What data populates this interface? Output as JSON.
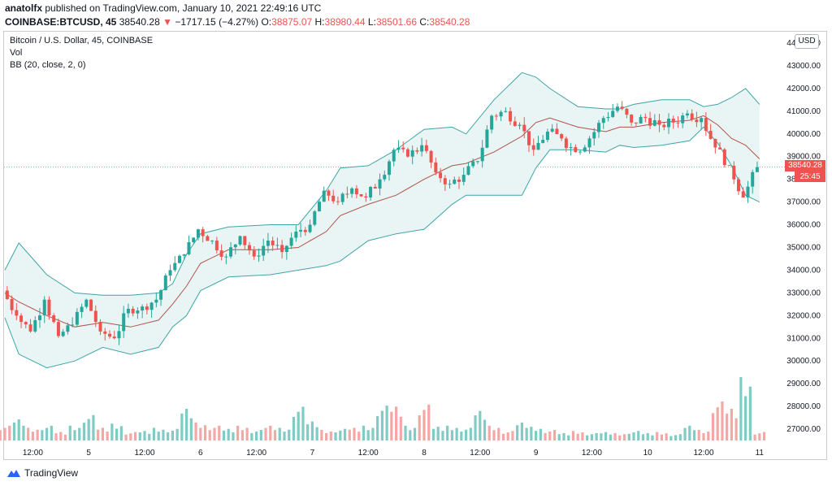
{
  "header": {
    "publisher_user": "anatolfx",
    "publisher_text": " published on TradingView.com, January 10, 2021 22:49:16 UTC",
    "symbol": "COINBASE:BTCUSD, 45",
    "last": "38540.28",
    "change_arrow": "▼",
    "change": "−1717.15 (−4.27%)",
    "o_label": "O:",
    "o_value": "38875.07",
    "h_label": "H:",
    "h_value": "38980.44",
    "l_label": "L:",
    "l_value": "38501.66",
    "c_label": "C:",
    "c_value": "38540.28"
  },
  "legend": {
    "title": "Bitcoin / U.S. Dollar, 45, COINBASE",
    "vol": "Vol",
    "bb": "BB (20, close, 2, 0)"
  },
  "currency_badge": "USD",
  "price_tag": "38540.28",
  "countdown_tag": "25:45",
  "footer": {
    "brand": "TradingView"
  },
  "colors": {
    "up": "#26a69a",
    "down": "#ef5350",
    "up_vol": "#80cbc4",
    "down_vol": "#f5a7a6",
    "band": "#3fa4a8",
    "band_fill": "#e8f5f4",
    "basis": "#b2524b"
  },
  "chart_data": {
    "type": "candlestick",
    "y_axis": {
      "ylim": [
        26500,
        44500
      ],
      "ticks": [
        27000,
        28000,
        29000,
        30000,
        31000,
        32000,
        33000,
        34000,
        35000,
        36000,
        37000,
        38000,
        39000,
        40000,
        41000,
        42000,
        43000,
        44000
      ],
      "tick_labels": [
        "27000.00",
        "28000.00",
        "29000.00",
        "30000.00",
        "31000.00",
        "32000.00",
        "33000.00",
        "34000.00",
        "35000.00",
        "36000.00",
        "37000.00",
        "38000.00",
        "39000.00",
        "40000.00",
        "41000.00",
        "42000.00",
        "43000.00",
        "44000.00"
      ]
    },
    "x_axis": {
      "labels": [
        "12:00",
        "5",
        "12:00",
        "6",
        "12:00",
        "7",
        "12:00",
        "8",
        "12:00",
        "9",
        "12:00",
        "10",
        "12:00",
        "11"
      ],
      "label_positions": [
        1,
        3,
        5,
        7,
        9,
        11,
        13,
        15,
        17,
        19,
        21,
        23,
        25,
        27
      ]
    },
    "x_units": "half-days since Jan 4 00:00 (1 unit = 12h)",
    "series": [
      {
        "name": "price",
        "points": [
          [
            0.0,
            33100
          ],
          [
            0.5,
            32000
          ],
          [
            1.0,
            31300
          ],
          [
            1.5,
            32700
          ],
          [
            2.0,
            31100
          ],
          [
            2.5,
            31600
          ],
          [
            3.0,
            32700
          ],
          [
            3.5,
            31300
          ],
          [
            4.0,
            31000
          ],
          [
            4.5,
            32300
          ],
          [
            5.0,
            32400
          ],
          [
            5.5,
            32700
          ],
          [
            6.0,
            34000
          ],
          [
            6.5,
            34700
          ],
          [
            7.0,
            35800
          ],
          [
            7.5,
            35300
          ],
          [
            8.0,
            34600
          ],
          [
            8.5,
            35500
          ],
          [
            9.0,
            34600
          ],
          [
            9.5,
            35300
          ],
          [
            10.0,
            34800
          ],
          [
            10.5,
            35700
          ],
          [
            11.0,
            36000
          ],
          [
            11.5,
            37500
          ],
          [
            12.0,
            37000
          ],
          [
            12.5,
            37600
          ],
          [
            13.0,
            37200
          ],
          [
            13.5,
            38000
          ],
          [
            14.0,
            39300
          ],
          [
            14.5,
            39000
          ],
          [
            15.0,
            39500
          ],
          [
            15.5,
            38300
          ],
          [
            16.0,
            37800
          ],
          [
            16.5,
            38200
          ],
          [
            17.0,
            38800
          ],
          [
            17.5,
            40800
          ],
          [
            18.0,
            41000
          ],
          [
            18.5,
            40400
          ],
          [
            19.0,
            39300
          ],
          [
            19.5,
            40100
          ],
          [
            20.0,
            39800
          ],
          [
            20.5,
            39200
          ],
          [
            21.0,
            39800
          ],
          [
            21.5,
            40700
          ],
          [
            22.0,
            41200
          ],
          [
            22.5,
            40500
          ],
          [
            23.0,
            40700
          ],
          [
            23.5,
            40400
          ],
          [
            24.0,
            40500
          ],
          [
            24.5,
            40900
          ],
          [
            25.0,
            40700
          ],
          [
            25.5,
            39400
          ],
          [
            26.0,
            38600
          ],
          [
            26.5,
            37200
          ],
          [
            27.0,
            38540
          ]
        ]
      },
      {
        "name": "upper_band",
        "points": [
          [
            0,
            34000
          ],
          [
            0.5,
            35200
          ],
          [
            1.5,
            33800
          ],
          [
            2.5,
            33000
          ],
          [
            3.5,
            32900
          ],
          [
            4.5,
            32900
          ],
          [
            5.5,
            33000
          ],
          [
            6.0,
            33400
          ],
          [
            6.5,
            34700
          ],
          [
            7.0,
            35600
          ],
          [
            8.0,
            35900
          ],
          [
            9.5,
            36000
          ],
          [
            10.5,
            36000
          ],
          [
            11.5,
            37500
          ],
          [
            12.0,
            38500
          ],
          [
            13.0,
            38600
          ],
          [
            14.0,
            39300
          ],
          [
            15.0,
            40200
          ],
          [
            16.0,
            40300
          ],
          [
            16.5,
            40000
          ],
          [
            17.5,
            41500
          ],
          [
            18.5,
            42700
          ],
          [
            19.0,
            42500
          ],
          [
            19.5,
            42000
          ],
          [
            20.5,
            41200
          ],
          [
            21.5,
            41100
          ],
          [
            22.0,
            41100
          ],
          [
            22.5,
            41300
          ],
          [
            23.5,
            41500
          ],
          [
            24.5,
            41500
          ],
          [
            25.0,
            41200
          ],
          [
            25.5,
            41300
          ],
          [
            26.0,
            41600
          ],
          [
            26.5,
            42000
          ],
          [
            27.0,
            41300
          ]
        ]
      },
      {
        "name": "basis",
        "points": [
          [
            0,
            33000
          ],
          [
            0.5,
            32600
          ],
          [
            1.5,
            32000
          ],
          [
            2.5,
            31500
          ],
          [
            3.5,
            31700
          ],
          [
            4.5,
            31500
          ],
          [
            5.5,
            31800
          ],
          [
            6.0,
            32500
          ],
          [
            6.5,
            33300
          ],
          [
            7.0,
            34300
          ],
          [
            8.0,
            34900
          ],
          [
            9.5,
            34900
          ],
          [
            10.5,
            35000
          ],
          [
            11.5,
            35700
          ],
          [
            12.0,
            36400
          ],
          [
            13.0,
            36900
          ],
          [
            14.0,
            37300
          ],
          [
            15.0,
            38000
          ],
          [
            16.0,
            38600
          ],
          [
            16.5,
            38700
          ],
          [
            17.5,
            39200
          ],
          [
            18.5,
            39900
          ],
          [
            19.0,
            40500
          ],
          [
            19.5,
            40700
          ],
          [
            20.5,
            40300
          ],
          [
            21.5,
            40100
          ],
          [
            22.0,
            40300
          ],
          [
            22.5,
            40300
          ],
          [
            23.5,
            40500
          ],
          [
            24.5,
            40600
          ],
          [
            25.0,
            40800
          ],
          [
            25.5,
            40400
          ],
          [
            26.0,
            39800
          ],
          [
            26.5,
            39500
          ],
          [
            27.0,
            38900
          ]
        ]
      },
      {
        "name": "lower_band",
        "points": [
          [
            0,
            31900
          ],
          [
            0.5,
            30300
          ],
          [
            1.5,
            29700
          ],
          [
            2.5,
            30000
          ],
          [
            3.5,
            30600
          ],
          [
            4.5,
            30300
          ],
          [
            5.5,
            30600
          ],
          [
            6.0,
            31500
          ],
          [
            6.5,
            32000
          ],
          [
            7.0,
            33100
          ],
          [
            8.0,
            33700
          ],
          [
            9.5,
            33800
          ],
          [
            10.5,
            34000
          ],
          [
            11.5,
            34200
          ],
          [
            12.0,
            34400
          ],
          [
            13.0,
            35300
          ],
          [
            14.0,
            35600
          ],
          [
            15.0,
            35800
          ],
          [
            16.0,
            36900
          ],
          [
            16.5,
            37300
          ],
          [
            17.5,
            37300
          ],
          [
            18.5,
            37300
          ],
          [
            19.0,
            38500
          ],
          [
            19.5,
            39300
          ],
          [
            20.5,
            39300
          ],
          [
            21.5,
            39200
          ],
          [
            22.0,
            39500
          ],
          [
            22.5,
            39400
          ],
          [
            23.5,
            39500
          ],
          [
            24.5,
            39700
          ],
          [
            25.0,
            40300
          ],
          [
            25.5,
            39600
          ],
          [
            26.0,
            38600
          ],
          [
            26.5,
            37300
          ],
          [
            27.0,
            37000
          ]
        ]
      }
    ],
    "volume": {
      "y_range": [
        0,
        1
      ],
      "points": [
        [
          0.0,
          0.14
        ],
        [
          0.5,
          0.2
        ],
        [
          1.0,
          0.12
        ],
        [
          1.5,
          0.14
        ],
        [
          2.0,
          0.08
        ],
        [
          2.5,
          0.14
        ],
        [
          3.0,
          0.24
        ],
        [
          3.5,
          0.12
        ],
        [
          4.0,
          0.16
        ],
        [
          4.5,
          0.08
        ],
        [
          5.0,
          0.09
        ],
        [
          5.5,
          0.12
        ],
        [
          6.0,
          0.11
        ],
        [
          6.5,
          0.3
        ],
        [
          7.0,
          0.17
        ],
        [
          7.5,
          0.14
        ],
        [
          8.0,
          0.11
        ],
        [
          8.5,
          0.14
        ],
        [
          9.0,
          0.1
        ],
        [
          9.5,
          0.14
        ],
        [
          10.0,
          0.12
        ],
        [
          10.5,
          0.32
        ],
        [
          11.0,
          0.18
        ],
        [
          11.5,
          0.1
        ],
        [
          12.0,
          0.11
        ],
        [
          12.5,
          0.12
        ],
        [
          13.0,
          0.14
        ],
        [
          13.5,
          0.33
        ],
        [
          14.0,
          0.32
        ],
        [
          14.5,
          0.14
        ],
        [
          15.0,
          0.34
        ],
        [
          15.5,
          0.13
        ],
        [
          16.0,
          0.14
        ],
        [
          16.5,
          0.12
        ],
        [
          17.0,
          0.28
        ],
        [
          17.5,
          0.14
        ],
        [
          18.0,
          0.09
        ],
        [
          18.5,
          0.17
        ],
        [
          19.0,
          0.13
        ],
        [
          19.5,
          0.1
        ],
        [
          20.0,
          0.07
        ],
        [
          20.5,
          0.09
        ],
        [
          21.0,
          0.07
        ],
        [
          21.5,
          0.08
        ],
        [
          22.0,
          0.07
        ],
        [
          22.5,
          0.09
        ],
        [
          23.0,
          0.07
        ],
        [
          23.5,
          0.08
        ],
        [
          24.0,
          0.06
        ],
        [
          24.5,
          0.14
        ],
        [
          25.0,
          0.1
        ],
        [
          25.5,
          0.37
        ],
        [
          26.0,
          0.3
        ],
        [
          26.5,
          0.6
        ],
        [
          27.0,
          0.08
        ]
      ],
      "up_flags": [
        0,
        1,
        0,
        1,
        0,
        1,
        1,
        0,
        1,
        0,
        1,
        1,
        1,
        1,
        0,
        0,
        1,
        0,
        1,
        0,
        1,
        1,
        1,
        0,
        1,
        0,
        1,
        1,
        0,
        1,
        0,
        1,
        1,
        1,
        1,
        0,
        0,
        1,
        1,
        0,
        1,
        0,
        1,
        1,
        0,
        1,
        1,
        0,
        1,
        1,
        0,
        0,
        0,
        1,
        0
      ]
    }
  }
}
